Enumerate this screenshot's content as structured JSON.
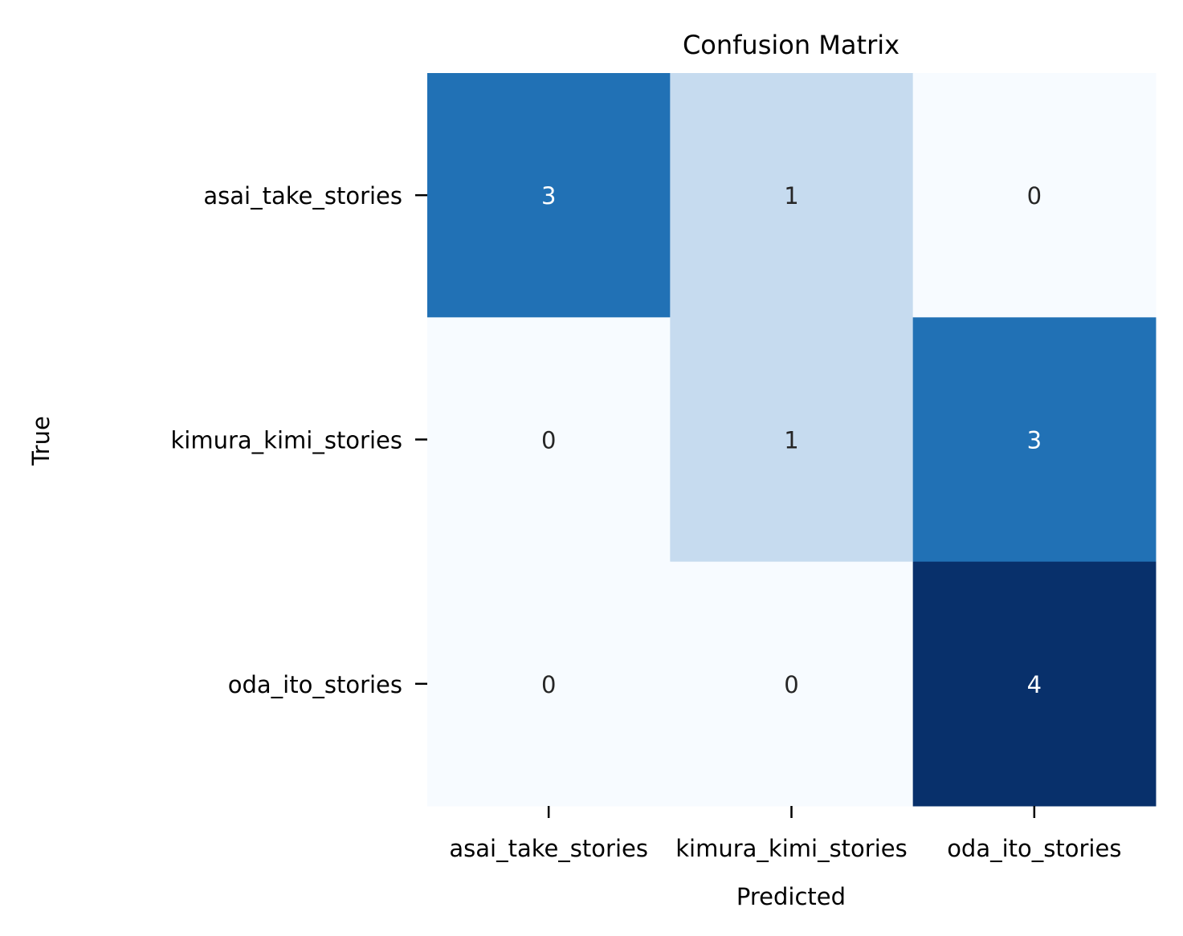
{
  "chart_data": {
    "type": "heatmap",
    "title": "Confusion Matrix",
    "xlabel": "Predicted",
    "ylabel": "True",
    "x_categories": [
      "asai_take_stories",
      "kimura_kimi_stories",
      "oda_ito_stories"
    ],
    "y_categories": [
      "asai_take_stories",
      "kimura_kimi_stories",
      "oda_ito_stories"
    ],
    "values": [
      [
        3,
        1,
        0
      ],
      [
        0,
        1,
        3
      ],
      [
        0,
        0,
        4
      ]
    ],
    "vmin": 0,
    "vmax": 4,
    "colormap": "Blues",
    "colorbar": false,
    "cell_text_colors": {
      "light": "#ffffff",
      "dark": "#262626"
    }
  }
}
